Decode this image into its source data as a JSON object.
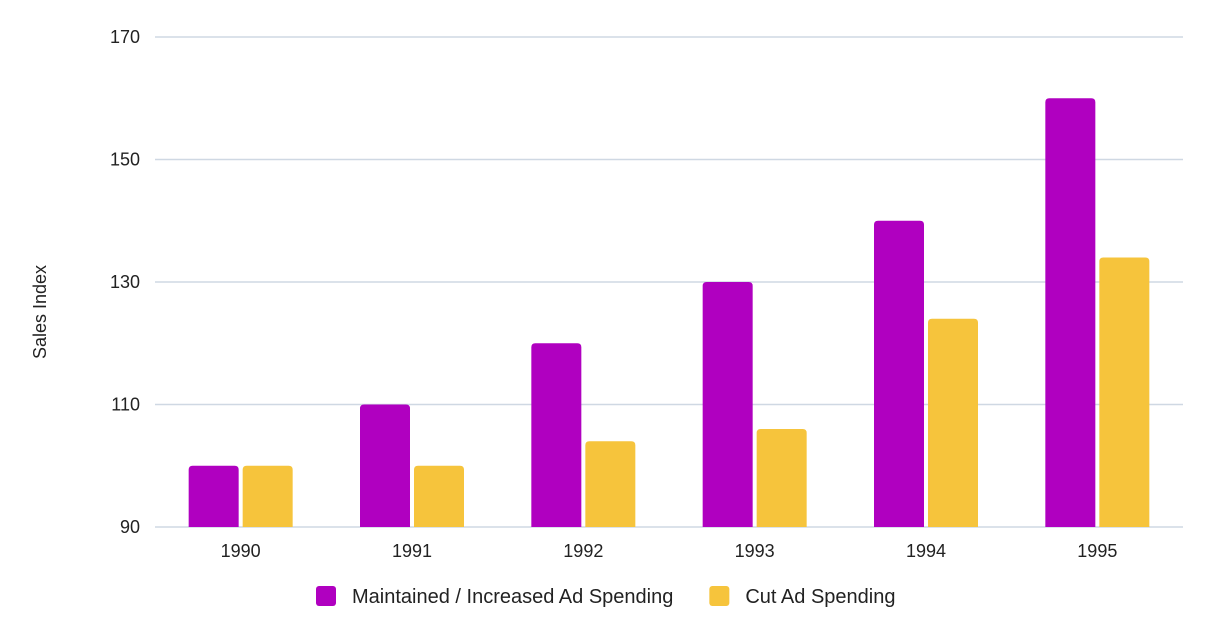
{
  "chart_data": {
    "type": "bar",
    "title": "",
    "xlabel": "",
    "ylabel": "Sales Index",
    "ylim": [
      90,
      170
    ],
    "yticks": [
      90,
      110,
      130,
      150,
      170
    ],
    "categories": [
      "1990",
      "1991",
      "1992",
      "1993",
      "1994",
      "1995"
    ],
    "series": [
      {
        "name": "Maintained / Increased Ad Spending",
        "color": "#b000c0",
        "values": [
          100,
          110,
          120,
          130,
          140,
          160
        ]
      },
      {
        "name": "Cut Ad Spending",
        "color": "#f6c43c",
        "values": [
          100,
          100,
          104,
          106,
          124,
          134
        ]
      }
    ],
    "grid": true,
    "legend_position": "bottom"
  }
}
